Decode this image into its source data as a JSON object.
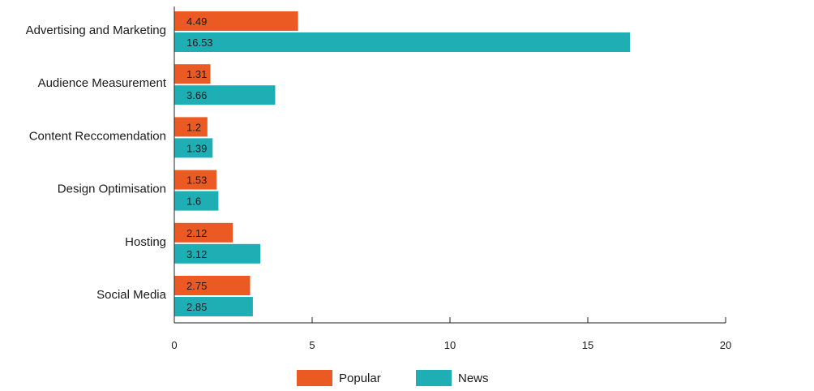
{
  "chart_data": {
    "type": "bar",
    "orientation": "horizontal",
    "categories": [
      "Advertising and Marketing",
      "Audience Measurement",
      "Content Reccomendation",
      "Design Optimisation",
      "Hosting",
      "Social Media"
    ],
    "series": [
      {
        "name": "Popular",
        "color": "#eb5a23",
        "values": [
          4.49,
          1.31,
          1.2,
          1.53,
          2.12,
          2.75
        ]
      },
      {
        "name": "News",
        "color": "#20aeb5",
        "values": [
          16.53,
          3.66,
          1.39,
          1.6,
          3.12,
          2.85
        ]
      }
    ],
    "xlim": [
      0,
      20
    ],
    "xticks": [
      0,
      5,
      10,
      15,
      20
    ],
    "legend_position": "bottom",
    "data_labels": true,
    "grid": false
  }
}
